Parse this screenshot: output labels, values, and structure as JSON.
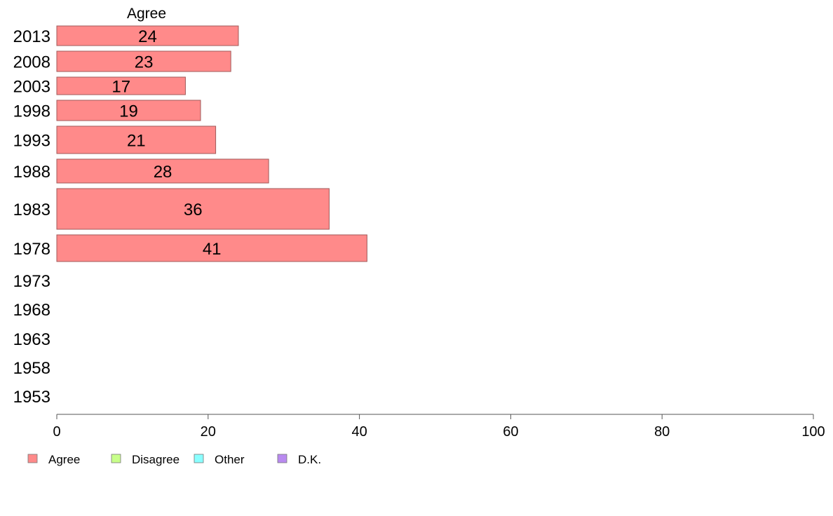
{
  "chart_data": {
    "type": "bar",
    "orientation": "horizontal",
    "column_title": "Agree",
    "categories": [
      "2013",
      "2008",
      "2003",
      "1998",
      "1993",
      "1988",
      "1983",
      "1978",
      "1973",
      "1968",
      "1963",
      "1958",
      "1953"
    ],
    "series": [
      {
        "name": "Agree",
        "values": [
          24,
          23,
          17,
          19,
          21,
          28,
          36,
          41,
          null,
          null,
          null,
          null,
          null
        ],
        "data_labels": [
          "24",
          "23",
          "17",
          "19",
          "21",
          "28",
          "36",
          "41",
          "",
          "",
          "",
          "",
          ""
        ]
      }
    ],
    "xlim": [
      0,
      100
    ],
    "x_ticks": [
      "0",
      "20",
      "40",
      "60",
      "80",
      "100"
    ],
    "grid": false,
    "legend": {
      "placement": "bottom-left",
      "entries": [
        {
          "label": "Agree",
          "color": "#ff8a8a"
        },
        {
          "label": "Disagree",
          "color": "#c8ff8a"
        },
        {
          "label": "Other",
          "color": "#8affff"
        },
        {
          "label": "D.K.",
          "color": "#b98af0"
        }
      ]
    },
    "colors": {
      "agree": "#ff8a8a",
      "bar_stroke": "#a05a5a",
      "axis": "#555555"
    }
  }
}
